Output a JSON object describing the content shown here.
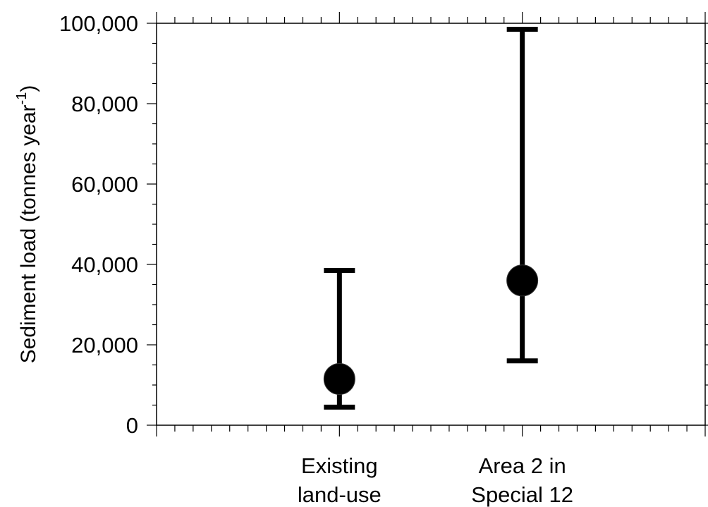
{
  "chart_data": {
    "type": "scatter",
    "title": "",
    "xlabel": "",
    "ylabel": "Sediment load (tonnes year",
    "ylabel_superscript": "-1",
    "ylabel_suffix": ")",
    "ylim": [
      0,
      100000
    ],
    "y_ticks": [
      0,
      20000,
      40000,
      60000,
      80000,
      100000
    ],
    "y_tick_labels": [
      "0",
      "20,000",
      "40,000",
      "60,000",
      "80,000",
      "100,000"
    ],
    "categories": [
      {
        "line1": "Existing",
        "line2": "land-use"
      },
      {
        "line1": "Area 2 in",
        "line2": "Special 12"
      }
    ],
    "series": [
      {
        "points": [
          {
            "category": 0,
            "value": 11500,
            "err_low": 4500,
            "err_high": 38500
          },
          {
            "category": 1,
            "value": 36000,
            "err_low": 16000,
            "err_high": 98500
          }
        ]
      }
    ],
    "grid": false,
    "legend": "none",
    "colors": {
      "marker": "#000000",
      "axis": "#000000",
      "background": "#ffffff"
    }
  }
}
